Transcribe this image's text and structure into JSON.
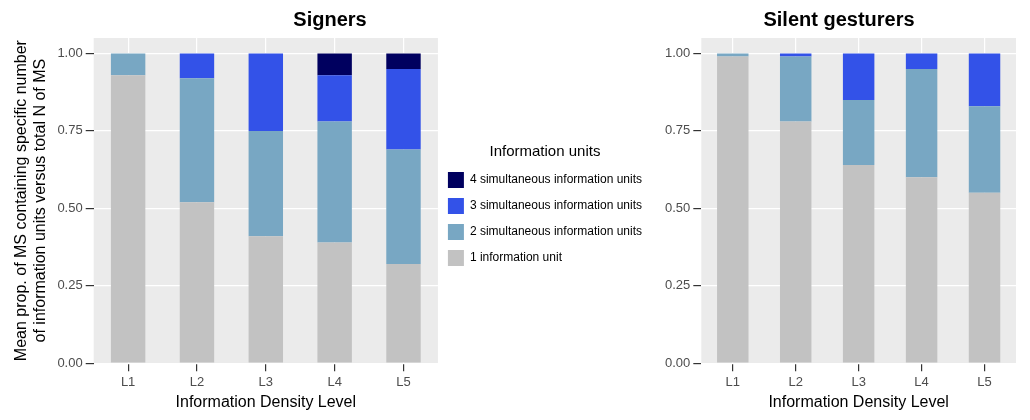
{
  "chart_data": [
    {
      "type": "bar",
      "title": "Signers",
      "xlabel": "Information Density Level",
      "ylabel": "Mean prop. of MS containing specific number of information units versus total N of MS",
      "legend_title": "Information units",
      "categories": [
        "L1",
        "L2",
        "L3",
        "L4",
        "L5"
      ],
      "stacked": true,
      "ylim": [
        0,
        1.05
      ],
      "yticks": [
        {
          "value": 0,
          "label": "0.00"
        },
        {
          "value": 0.25,
          "label": "0.25"
        },
        {
          "value": 0.5,
          "label": "0.50"
        },
        {
          "value": 0.75,
          "label": "0.75"
        },
        {
          "value": 1,
          "label": "1.00"
        }
      ],
      "grid": true,
      "legend": "right",
      "series": [
        {
          "name": "1 information unit",
          "color": "#c2c2c2",
          "values": [
            0.93,
            0.52,
            0.41,
            0.39,
            0.32
          ]
        },
        {
          "name": "2 simultaneous information units",
          "color": "#78a7c3",
          "values": [
            0.07,
            0.4,
            0.34,
            0.39,
            0.37
          ]
        },
        {
          "name": "3 simultaneous information units",
          "color": "#3352e8",
          "values": [
            0,
            0.08,
            0.25,
            0.15,
            0.26
          ]
        },
        {
          "name": "4 simultaneous information units",
          "color": "#00005f",
          "values": [
            0,
            0,
            0,
            0.07,
            0.05
          ]
        }
      ]
    },
    {
      "type": "bar",
      "title": "Silent gesturers",
      "xlabel": "Information Density Level",
      "categories": [
        "L1",
        "L2",
        "L3",
        "L4",
        "L5"
      ],
      "stacked": true,
      "ylim": [
        0,
        1.05
      ],
      "yticks": [
        {
          "value": 0,
          "label": "0.00"
        },
        {
          "value": 0.25,
          "label": "0.25"
        },
        {
          "value": 0.5,
          "label": "0.50"
        },
        {
          "value": 0.75,
          "label": "0.75"
        },
        {
          "value": 1,
          "label": "1.00"
        }
      ],
      "grid": true,
      "series": [
        {
          "color": "#c2c2c2",
          "values": [
            0.99,
            0.78,
            0.64,
            0.6,
            0.55
          ]
        },
        {
          "color": "#78a7c3",
          "values": [
            0.01,
            0.21,
            0.21,
            0.35,
            0.28
          ]
        },
        {
          "color": "#3352e8",
          "values": [
            0,
            0.01,
            0.15,
            0.05,
            0.17
          ]
        },
        {
          "color": "#00005f",
          "values": [
            0,
            0,
            0,
            0,
            0
          ]
        }
      ]
    }
  ]
}
